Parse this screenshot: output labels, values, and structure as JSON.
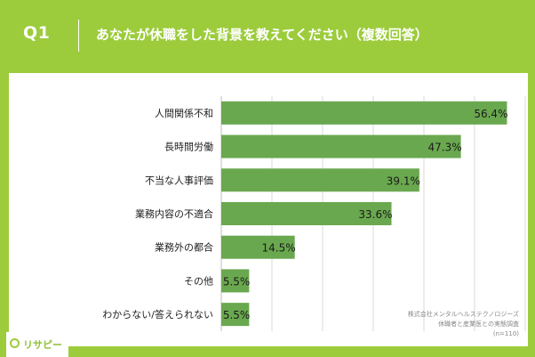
{
  "header": {
    "question_number": "Q1",
    "title": "あなたが休職をした背景を教えてください（複数回答）"
  },
  "chart_data": {
    "type": "bar",
    "orientation": "horizontal",
    "title": "",
    "xlabel": "",
    "ylabel": "",
    "categories": [
      "人間関係不和",
      "長時間労働",
      "不当な人事評価",
      "業務内容の不適合",
      "業務外の都合",
      "その他",
      "わからない/答えられない"
    ],
    "values": [
      56.4,
      47.3,
      39.1,
      33.6,
      14.5,
      5.5,
      5.5
    ],
    "value_labels": [
      "56.4%",
      "47.3%",
      "39.1%",
      "33.6%",
      "14.5%",
      "5.5%",
      "5.5%"
    ],
    "xlim": [
      0,
      60
    ],
    "grid": true,
    "bar_color": "#6aa84f"
  },
  "source": {
    "line1": "株式会社メンタルヘルステクノロジーズ",
    "line2": "休職者と産業医との実態調査",
    "line3": "(n=110)"
  },
  "logo": {
    "text": "リサピー"
  }
}
